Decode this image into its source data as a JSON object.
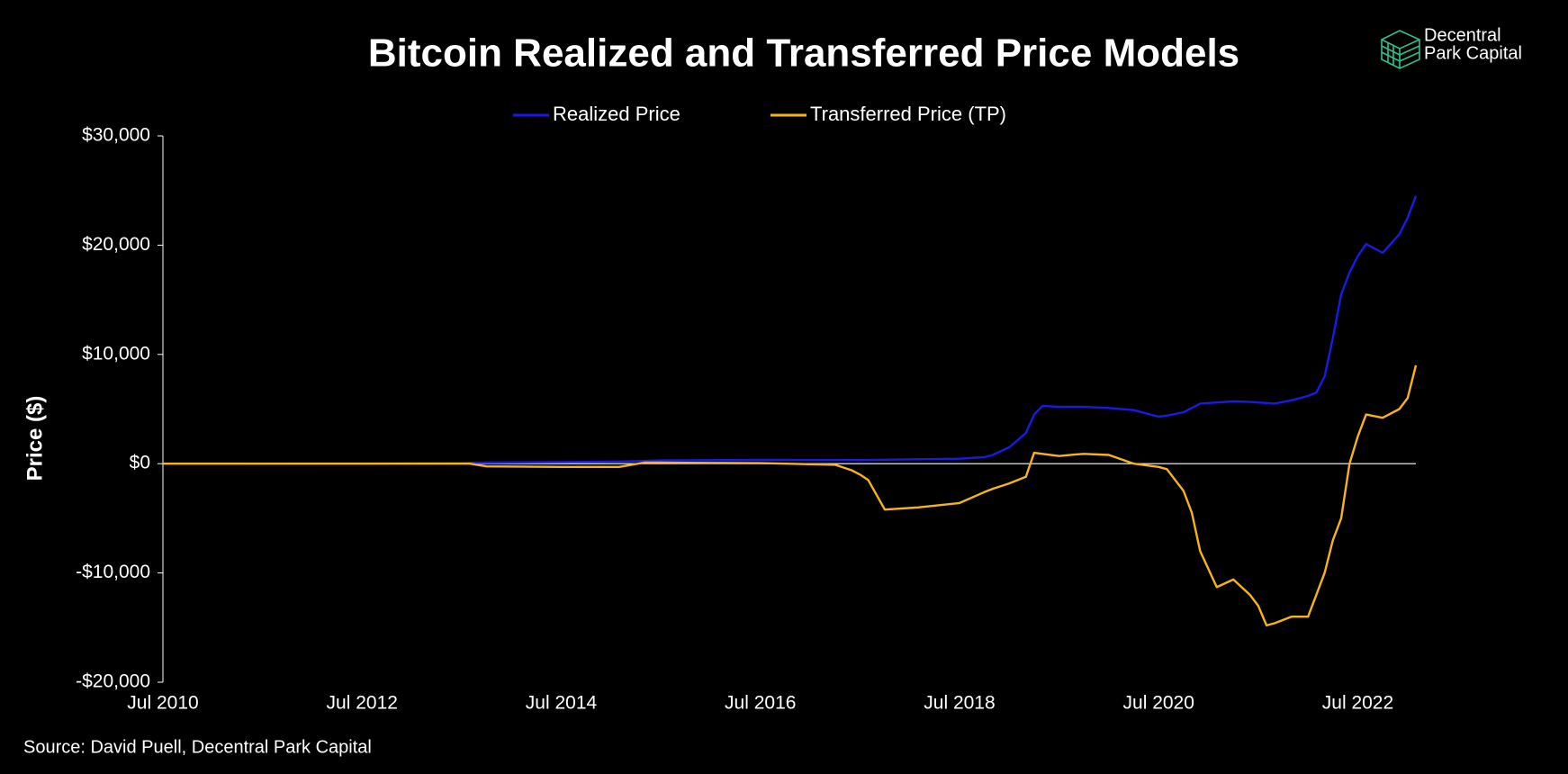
{
  "chart_data": {
    "type": "line",
    "title": "Bitcoin Realized and Transferred Price Models",
    "brand": [
      "Decentral",
      "Park Capital"
    ],
    "ylabel": "Price ($)",
    "source": "Source: David Puell, Decentral Park Capital",
    "legend": "top",
    "x": [
      "2010-07",
      "2012-07",
      "2013-07",
      "2013-08",
      "2013-10",
      "2014-07",
      "2015-02",
      "2015-05",
      "2015-07",
      "2016-07",
      "2017-04",
      "2017-06",
      "2017-07",
      "2017-08",
      "2017-10",
      "2018-02",
      "2018-07",
      "2018-10",
      "2018-11",
      "2019-01",
      "2019-03",
      "2019-04",
      "2019-05",
      "2019-07",
      "2019-09",
      "2019-10",
      "2020-01",
      "2020-04",
      "2020-07",
      "2020-08",
      "2020-10",
      "2020-11",
      "2020-12",
      "2021-02",
      "2021-04",
      "2021-06",
      "2021-07",
      "2021-08",
      "2021-09",
      "2021-11",
      "2021-12",
      "2022-01",
      "2022-02",
      "2022-03",
      "2022-04",
      "2022-05",
      "2022-06",
      "2022-07",
      "2022-08",
      "2022-10",
      "2022-12",
      "2023-01",
      "2023-02"
    ],
    "series": [
      {
        "name": "Realized Price",
        "color": "#1a1ae6",
        "values": [
          0,
          5,
          60,
          80,
          100,
          150,
          200,
          250,
          300,
          350,
          340,
          330,
          330,
          340,
          360,
          400,
          450,
          600,
          800,
          1500,
          2800,
          4500,
          5300,
          5200,
          5200,
          5200,
          5100,
          4900,
          4300,
          4400,
          4700,
          5100,
          5500,
          5600,
          5700,
          5650,
          5600,
          5550,
          5500,
          5800,
          6000,
          6200,
          6500,
          8000,
          11500,
          15500,
          17500,
          19000,
          20100,
          19300,
          21000,
          22500,
          24500
        ]
      },
      {
        "name": "Transferred Price (TP)",
        "color": "#f5b51a",
        "values": [
          0,
          0,
          0,
          0,
          -250,
          -300,
          -300,
          100,
          100,
          50,
          -100,
          -600,
          -1000,
          -1500,
          -4200,
          -4000,
          -3600,
          -2600,
          -2300,
          -1800,
          -1200,
          1000,
          900,
          700,
          850,
          900,
          800,
          0,
          -300,
          -500,
          -2500,
          -4500,
          -8000,
          -11300,
          -10600,
          -12000,
          -13000,
          -14800,
          -14600,
          -14000,
          -14000,
          -14000,
          -12000,
          -10000,
          -7000,
          -5000,
          0,
          2500,
          4500,
          4200,
          5000,
          6000,
          9000
        ]
      }
    ],
    "xlim": [
      "2010-07",
      "2023-02"
    ],
    "xticks": [
      {
        "value": "2010-07",
        "label": "Jul 2010"
      },
      {
        "value": "2012-07",
        "label": "Jul 2012"
      },
      {
        "value": "2014-07",
        "label": "Jul 2014"
      },
      {
        "value": "2016-07",
        "label": "Jul 2016"
      },
      {
        "value": "2018-07",
        "label": "Jul 2018"
      },
      {
        "value": "2020-07",
        "label": "Jul 2020"
      },
      {
        "value": "2022-07",
        "label": "Jul 2022"
      }
    ],
    "ylim": [
      -20000,
      30000
    ],
    "yticks": [
      {
        "value": -20000,
        "label": "-$20,000"
      },
      {
        "value": -10000,
        "label": "-$10,000"
      },
      {
        "value": 0,
        "label": "$0"
      },
      {
        "value": 10000,
        "label": "$10,000"
      },
      {
        "value": 20000,
        "label": "$20,000"
      },
      {
        "value": 30000,
        "label": "$30,000"
      }
    ]
  }
}
